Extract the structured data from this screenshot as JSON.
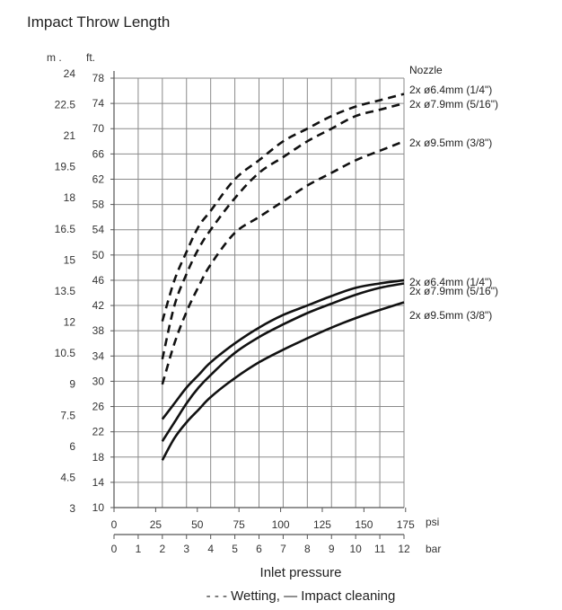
{
  "chart_data": {
    "type": "line",
    "title": "Impact Throw Length",
    "xlabel": "Inlet pressure",
    "legend_text": "- - - Wetting,  — Impact cleaning",
    "grid": true,
    "legend_header": "Nozzle",
    "x_units": {
      "primary": "psi",
      "secondary": "bar"
    },
    "y_units": {
      "left": "m .",
      "right": "ft."
    },
    "xlim_bar": [
      0,
      12
    ],
    "ylim_ft": [
      10,
      78
    ],
    "psi_ticks": [
      "0",
      "25",
      "50",
      "75",
      "100",
      "125",
      "150",
      "175"
    ],
    "bar_ticks": [
      "0",
      "1",
      "2",
      "3",
      "4",
      "5",
      "6",
      "7",
      "8",
      "9",
      "10",
      "11",
      "12"
    ],
    "ft_ticks": [
      "78",
      "74",
      "70",
      "66",
      "62",
      "58",
      "54",
      "50",
      "46",
      "42",
      "38",
      "34",
      "30",
      "26",
      "22",
      "18",
      "14",
      "10"
    ],
    "m_ticks": [
      "24",
      "22.5",
      "21",
      "19.5",
      "18",
      "16.5",
      "15",
      "13.5",
      "12",
      "10.5",
      "9",
      "7.5",
      "6",
      "4.5",
      "3"
    ],
    "series": [
      {
        "name": "2x ø6.4mm (1/4\")",
        "mode": "Wetting",
        "style": "dashed",
        "x_bar": [
          2,
          2.5,
          3,
          3.5,
          4,
          5,
          6,
          7,
          8,
          9,
          10,
          11,
          12
        ],
        "y_ft": [
          39.5,
          46,
          50.5,
          54.5,
          57,
          62,
          65,
          68,
          70,
          72,
          73.5,
          74.5,
          75.5
        ]
      },
      {
        "name": "2x ø7.9mm (5/16\")",
        "mode": "Wetting",
        "style": "dashed",
        "x_bar": [
          2,
          2.5,
          3,
          3.5,
          4,
          5,
          6,
          7,
          8,
          9,
          10,
          11,
          12
        ],
        "y_ft": [
          33.5,
          42,
          47,
          51,
          54,
          59,
          63,
          65.5,
          68,
          70,
          72,
          73,
          74
        ]
      },
      {
        "name": "2x ø9.5mm (3/8\")",
        "mode": "Wetting",
        "style": "dashed",
        "x_bar": [
          2,
          2.5,
          3,
          3.5,
          4,
          5,
          6,
          7,
          8,
          9,
          10,
          11,
          12
        ],
        "y_ft": [
          29.5,
          36,
          41,
          45,
          48.5,
          53.5,
          56,
          58.5,
          61,
          63,
          65,
          66.5,
          68
        ]
      },
      {
        "name": "2x ø6.4mm (1/4\")",
        "mode": "Impact cleaning",
        "style": "solid",
        "x_bar": [
          2,
          2.5,
          3,
          3.5,
          4,
          5,
          6,
          7,
          8,
          9,
          10,
          11,
          12
        ],
        "y_ft": [
          24,
          26.5,
          29,
          31,
          33,
          36,
          38.5,
          40.5,
          42,
          43.5,
          44.8,
          45.5,
          46
        ]
      },
      {
        "name": "2x ø7.9mm (5/16\")",
        "mode": "Impact cleaning",
        "style": "solid",
        "x_bar": [
          2,
          2.5,
          3,
          3.5,
          4,
          5,
          6,
          7,
          8,
          9,
          10,
          11,
          12
        ],
        "y_ft": [
          20.5,
          23.5,
          26.5,
          29,
          31,
          34.5,
          37,
          39,
          40.8,
          42.3,
          43.7,
          44.8,
          45.5
        ]
      },
      {
        "name": "2x ø9.5mm (3/8\")",
        "mode": "Impact cleaning",
        "style": "solid",
        "x_bar": [
          2,
          2.5,
          3,
          3.5,
          4,
          5,
          6,
          7,
          8,
          9,
          10,
          11,
          12
        ],
        "y_ft": [
          17.5,
          21,
          23.5,
          25.5,
          27.5,
          30.5,
          33,
          35,
          36.8,
          38.5,
          40,
          41.3,
          42.5
        ]
      }
    ]
  }
}
